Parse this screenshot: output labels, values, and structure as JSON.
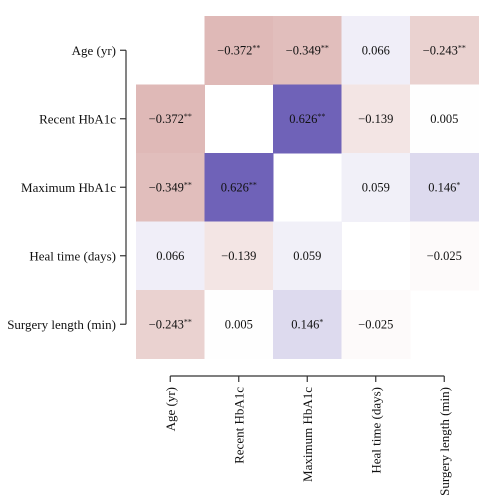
{
  "chart_data": {
    "type": "heatmap",
    "variables": [
      "Age (yr)",
      "Recent HbA1c",
      "Maximum HbA1c",
      "Heal time (days)",
      "Surgery length (min)"
    ],
    "row_labels": [
      "Age (yr)",
      "Recent HbA1c",
      "Maximum HbA1c",
      "Heal time (days)",
      "Surgery length (min)"
    ],
    "col_labels": [
      "Age (yr)",
      "Recent HbA1c",
      "Maximum HbA1c",
      "Heal time (days)",
      "Surgery length (min)"
    ],
    "cells": [
      {
        "row": 0,
        "col": 1,
        "value": -0.372,
        "stars": "**",
        "label": "−0.372"
      },
      {
        "row": 0,
        "col": 2,
        "value": -0.349,
        "stars": "**",
        "label": "−0.349"
      },
      {
        "row": 0,
        "col": 3,
        "value": 0.066,
        "stars": "",
        "label": "0.066"
      },
      {
        "row": 0,
        "col": 4,
        "value": -0.243,
        "stars": "**",
        "label": "−0.243"
      },
      {
        "row": 1,
        "col": 0,
        "value": -0.372,
        "stars": "**",
        "label": "−0.372"
      },
      {
        "row": 1,
        "col": 2,
        "value": 0.626,
        "stars": "**",
        "label": "0.626"
      },
      {
        "row": 1,
        "col": 3,
        "value": -0.139,
        "stars": "",
        "label": "−0.139"
      },
      {
        "row": 1,
        "col": 4,
        "value": 0.005,
        "stars": "",
        "label": "0.005"
      },
      {
        "row": 2,
        "col": 0,
        "value": -0.349,
        "stars": "**",
        "label": "−0.349"
      },
      {
        "row": 2,
        "col": 1,
        "value": 0.626,
        "stars": "**",
        "label": "0.626"
      },
      {
        "row": 2,
        "col": 3,
        "value": 0.059,
        "stars": "",
        "label": "0.059"
      },
      {
        "row": 2,
        "col": 4,
        "value": 0.146,
        "stars": "*",
        "label": "0.146"
      },
      {
        "row": 3,
        "col": 0,
        "value": 0.066,
        "stars": "",
        "label": "0.066"
      },
      {
        "row": 3,
        "col": 1,
        "value": -0.139,
        "stars": "",
        "label": "−0.139"
      },
      {
        "row": 3,
        "col": 2,
        "value": 0.059,
        "stars": "",
        "label": "0.059"
      },
      {
        "row": 3,
        "col": 4,
        "value": -0.025,
        "stars": "",
        "label": "−0.025"
      },
      {
        "row": 4,
        "col": 0,
        "value": -0.243,
        "stars": "**",
        "label": "−0.243"
      },
      {
        "row": 4,
        "col": 1,
        "value": 0.005,
        "stars": "",
        "label": "0.005"
      },
      {
        "row": 4,
        "col": 2,
        "value": 0.146,
        "stars": "*",
        "label": "0.146"
      },
      {
        "row": 4,
        "col": 3,
        "value": -0.025,
        "stars": "",
        "label": "−0.025"
      }
    ],
    "color_scale": {
      "negative": "#c98a86",
      "neutral": "#ffffff",
      "positive": "#6f62b8",
      "max_abs": 0.626
    },
    "axis_color": "#333333"
  }
}
